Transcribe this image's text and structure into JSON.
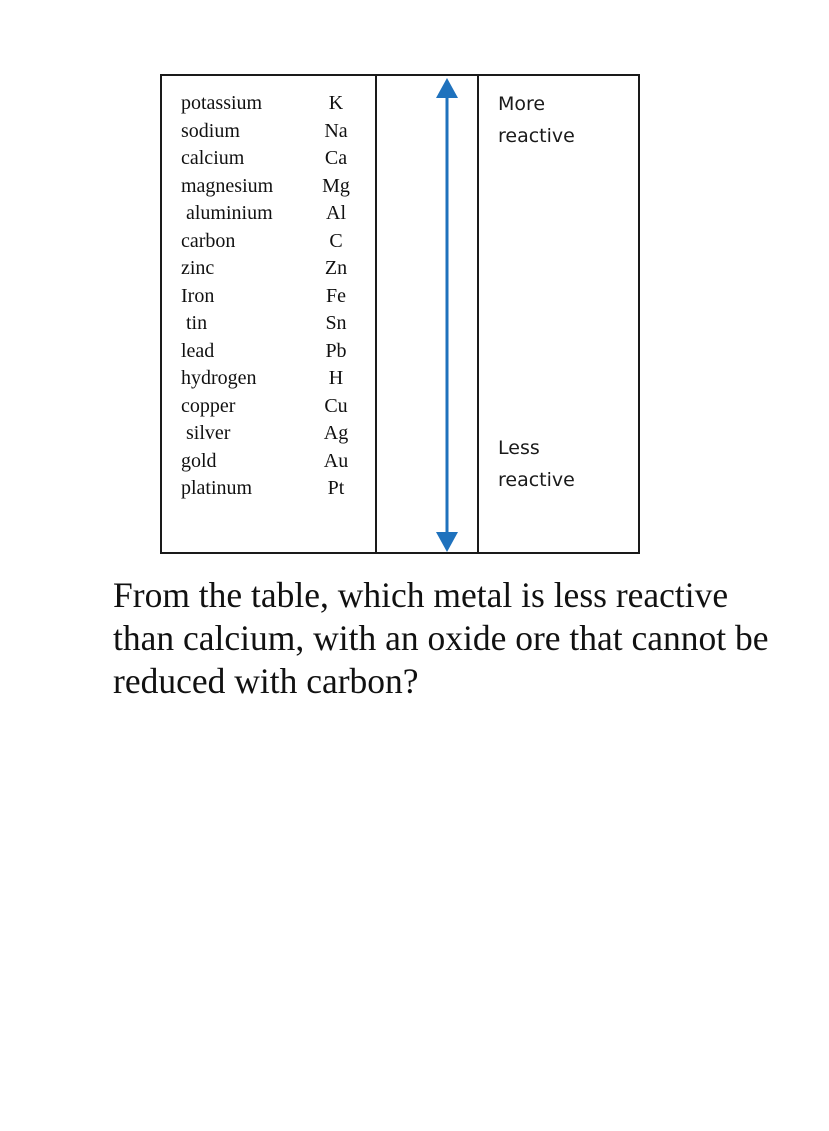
{
  "reactivity_table": {
    "elements": [
      {
        "name": "potassium",
        "symbol": "K"
      },
      {
        "name": "sodium",
        "symbol": "Na"
      },
      {
        "name": "calcium",
        "symbol": "Ca"
      },
      {
        "name": "magnesium",
        "symbol": "Mg"
      },
      {
        "name": " aluminium",
        "symbol": "Al"
      },
      {
        "name": "carbon",
        "symbol": "C"
      },
      {
        "name": "zinc",
        "symbol": "Zn"
      },
      {
        "name": "Iron",
        "symbol": "Fe"
      },
      {
        "name": " tin",
        "symbol": "Sn"
      },
      {
        "name": "lead",
        "symbol": "Pb"
      },
      {
        "name": "hydrogen",
        "symbol": "H"
      },
      {
        "name": "copper",
        "symbol": "Cu"
      },
      {
        "name": " silver",
        "symbol": "Ag"
      },
      {
        "name": "gold",
        "symbol": "Au"
      },
      {
        "name": "platinum",
        "symbol": "Pt"
      }
    ],
    "top_label": [
      "More",
      "reactive"
    ],
    "bottom_label": [
      "Less",
      "reactive"
    ],
    "arrow_color": "#1f72bd"
  },
  "question": "From the table, which metal is less reactive than calcium, with an oxide ore that cannot be reduced with carbon?"
}
